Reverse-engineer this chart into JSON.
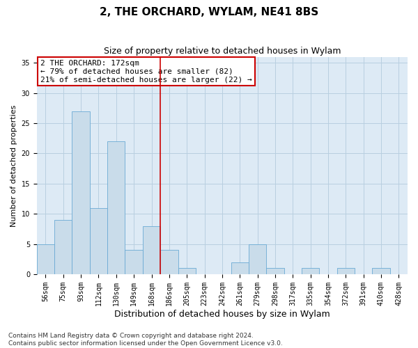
{
  "title": "2, THE ORCHARD, WYLAM, NE41 8BS",
  "subtitle": "Size of property relative to detached houses in Wylam",
  "xlabel": "Distribution of detached houses by size in Wylam",
  "ylabel": "Number of detached properties",
  "categories": [
    "56sqm",
    "75sqm",
    "93sqm",
    "112sqm",
    "130sqm",
    "149sqm",
    "168sqm",
    "186sqm",
    "205sqm",
    "223sqm",
    "242sqm",
    "261sqm",
    "279sqm",
    "298sqm",
    "317sqm",
    "335sqm",
    "354sqm",
    "372sqm",
    "391sqm",
    "410sqm",
    "428sqm"
  ],
  "values": [
    5,
    9,
    27,
    11,
    22,
    4,
    8,
    4,
    1,
    0,
    0,
    2,
    5,
    1,
    0,
    1,
    0,
    1,
    0,
    1,
    0
  ],
  "bar_color": "#c9dcea",
  "bar_edge_color": "#6aaad4",
  "subject_line_color": "#cc0000",
  "subject_bar_index": 6,
  "annotation_text": "2 THE ORCHARD: 172sqm\n← 79% of detached houses are smaller (82)\n21% of semi-detached houses are larger (22) →",
  "annotation_box_color": "#cc0000",
  "ylim": [
    0,
    36
  ],
  "yticks": [
    0,
    5,
    10,
    15,
    20,
    25,
    30,
    35
  ],
  "footer": "Contains HM Land Registry data © Crown copyright and database right 2024.\nContains public sector information licensed under the Open Government Licence v3.0.",
  "bg_color": "#ffffff",
  "plot_bg_color": "#ddeaf5",
  "grid_color": "#b8cfe0",
  "title_fontsize": 11,
  "subtitle_fontsize": 9,
  "xlabel_fontsize": 9,
  "ylabel_fontsize": 8,
  "tick_fontsize": 7,
  "annotation_fontsize": 8,
  "footer_fontsize": 6.5
}
